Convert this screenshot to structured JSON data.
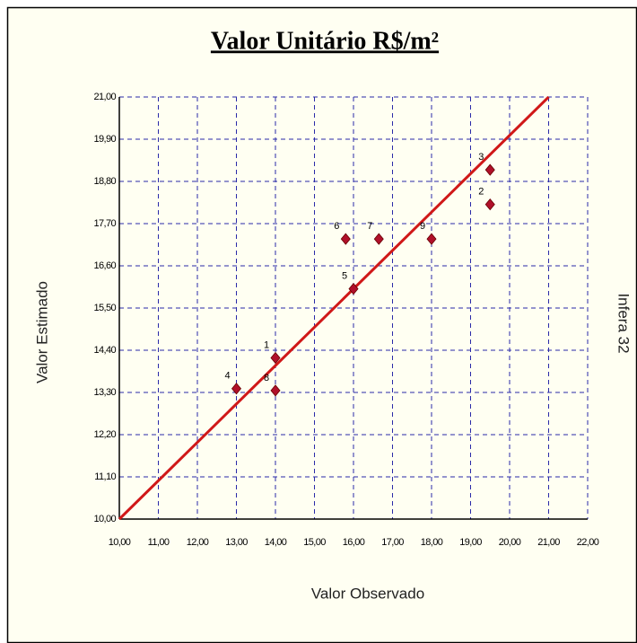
{
  "chart_data": {
    "type": "scatter",
    "title": "Valor Unitário R$/m²",
    "xlabel": "Valor Observado",
    "ylabel": "Valor Estimado",
    "side_label": "Infera 32",
    "series": [
      {
        "color": "#b0102a",
        "point_labels": [
          "1",
          "2",
          "3",
          "4",
          "5",
          "6",
          "7",
          "8",
          "9"
        ],
        "x": [
          14.0,
          19.5,
          19.5,
          13.0,
          16.0,
          15.8,
          16.65,
          14.0,
          18.0
        ],
        "values": [
          14.2,
          18.2,
          19.1,
          13.4,
          16.0,
          17.3,
          17.3,
          13.35,
          17.3
        ]
      }
    ],
    "reference_line": {
      "color": "#d01818",
      "x": [
        10,
        21
      ],
      "values": [
        10,
        21
      ]
    },
    "xlim": [
      10,
      22
    ],
    "ylim": [
      10,
      21
    ],
    "xticks": [
      {
        "value": 10,
        "label": "10,00"
      },
      {
        "value": 11,
        "label": "11,00"
      },
      {
        "value": 12,
        "label": "12,00"
      },
      {
        "value": 13,
        "label": "13,00"
      },
      {
        "value": 14,
        "label": "14,00"
      },
      {
        "value": 15,
        "label": "15,00"
      },
      {
        "value": 16,
        "label": "16,00"
      },
      {
        "value": 17,
        "label": "17,00"
      },
      {
        "value": 18,
        "label": "18,00"
      },
      {
        "value": 19,
        "label": "19,00"
      },
      {
        "value": 20,
        "label": "20,00"
      },
      {
        "value": 21,
        "label": "21,00"
      },
      {
        "value": 22,
        "label": "22,00"
      }
    ],
    "yticks": [
      {
        "value": 10,
        "label": "10,00"
      },
      {
        "value": 11.1,
        "label": "11,10"
      },
      {
        "value": 12.2,
        "label": "12,20"
      },
      {
        "value": 13.3,
        "label": "13,30"
      },
      {
        "value": 14.4,
        "label": "14,40"
      },
      {
        "value": 15.5,
        "label": "15,50"
      },
      {
        "value": 16.6,
        "label": "16,60"
      },
      {
        "value": 17.7,
        "label": "17,70"
      },
      {
        "value": 18.8,
        "label": "18,80"
      },
      {
        "value": 19.9,
        "label": "19,90"
      },
      {
        "value": 21,
        "label": "21,00"
      }
    ],
    "grid": true,
    "grid_color": "#2a2aa8"
  }
}
